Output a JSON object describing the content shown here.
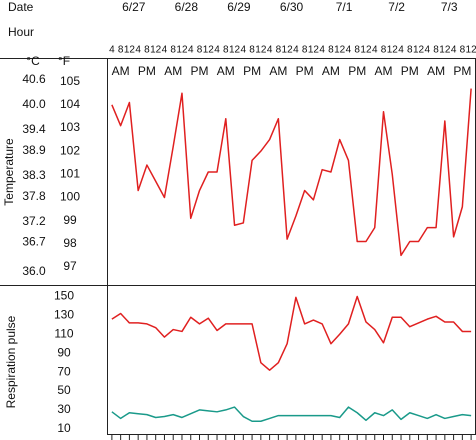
{
  "header": {
    "date_label": "Date",
    "hour_label": "Hour",
    "dates": [
      "6/27",
      "6/28",
      "6/29",
      "6/30",
      "7/1",
      "7/2",
      "7/3"
    ],
    "hours": [
      "4",
      "8",
      "12",
      "4",
      "8",
      "12"
    ],
    "periods": [
      "AM",
      "PM"
    ],
    "celsius_label": "°C",
    "fahrenheit_label": "°F"
  },
  "chart_data": [
    {
      "type": "line",
      "y_label": "Temperature",
      "ylim": [
        96.2,
        106
      ],
      "yticks": [
        97,
        98,
        99,
        100,
        101,
        102,
        103,
        104,
        105
      ],
      "y2lim": [
        35.67,
        41.11
      ],
      "y2ticks": [
        {
          "value": 36.0,
          "label": "36.0"
        },
        36.7,
        37.2,
        37.8,
        38.3,
        38.9,
        39.4,
        {
          "value": 40.0,
          "label": "40.0"
        },
        40.6
      ],
      "series": [
        {
          "color": "#e02020",
          "values": [
            104.0,
            103.1,
            104.1,
            100.3,
            101.4,
            100.7,
            100.0,
            102.2,
            104.5,
            99.1,
            100.3,
            101.1,
            101.1,
            103.4,
            98.8,
            98.9,
            101.6,
            102.0,
            102.5,
            103.4,
            98.2,
            99.2,
            100.3,
            99.9,
            101.2,
            101.1,
            102.5,
            101.6,
            98.1,
            98.1,
            98.7,
            103.7,
            101.0,
            97.5,
            98.1,
            98.1,
            98.7,
            98.7,
            103.3,
            98.3,
            99.6,
            104.7
          ]
        }
      ]
    },
    {
      "type": "line",
      "y_label": "Respiration pulse",
      "ylim": [
        4,
        160
      ],
      "yticks": [
        10,
        30,
        50,
        70,
        90,
        110,
        130,
        150
      ],
      "series": [
        {
          "color": "#e02020",
          "values": [
            126,
            132,
            122,
            122,
            121,
            117,
            107,
            115,
            113,
            128,
            121,
            127,
            114,
            121,
            121,
            121,
            121,
            80,
            72,
            80,
            100,
            149,
            121,
            125,
            121,
            100,
            110,
            121,
            150,
            123,
            115,
            101,
            128,
            128,
            118,
            122,
            126,
            129,
            123,
            123,
            113,
            113
          ]
        },
        {
          "color": "#1a9a8a",
          "values": [
            28,
            21,
            27,
            26,
            25,
            22,
            23,
            25,
            22,
            26,
            30,
            29,
            28,
            30,
            33,
            23,
            18,
            18,
            21,
            24,
            24,
            24,
            24,
            24,
            24,
            24,
            22,
            33,
            27,
            19,
            27,
            24,
            30,
            20,
            27,
            24,
            21,
            25,
            21,
            23,
            25,
            24
          ]
        }
      ]
    }
  ]
}
